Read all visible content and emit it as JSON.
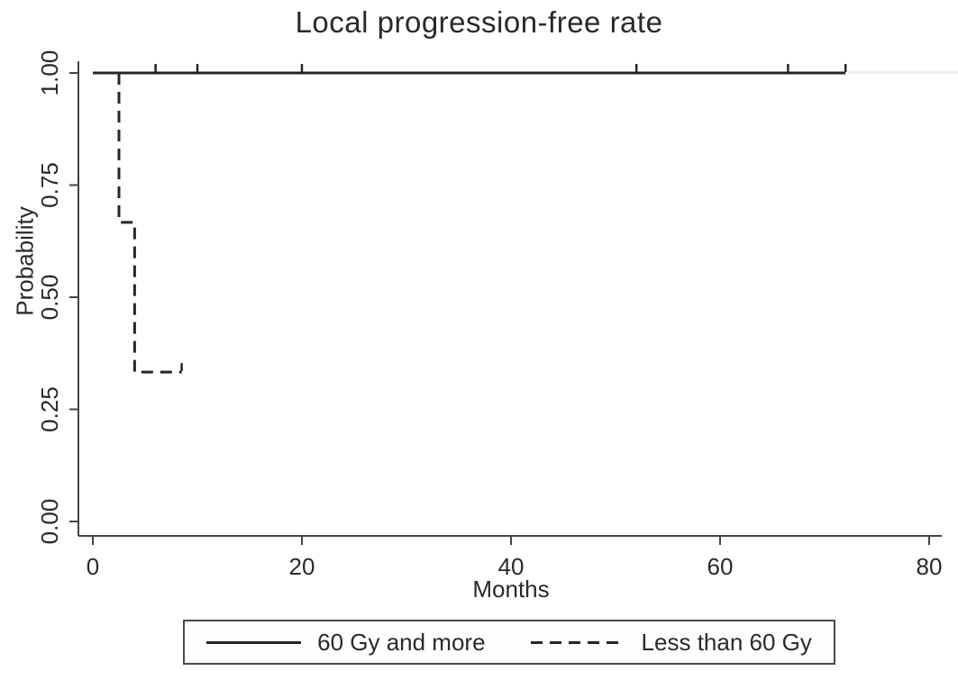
{
  "chart_data": {
    "type": "line",
    "subtype": "kaplan-meier-step",
    "title": "Local progression-free rate",
    "xlabel": "Months",
    "ylabel": "Probability",
    "xlim": [
      0,
      80
    ],
    "ylim": [
      0.0,
      1.0
    ],
    "x_ticks": [
      "0",
      "20",
      "40",
      "60",
      "80"
    ],
    "y_ticks": [
      "0.00",
      "0.25",
      "0.50",
      "0.75",
      "1.00"
    ],
    "grid": false,
    "legend_position": "bottom",
    "series": [
      {
        "name": "60 Gy and more",
        "line_style": "solid",
        "color": "#262626",
        "points": [
          [
            0,
            1.0
          ],
          [
            72,
            1.0
          ]
        ],
        "censor_marks": [
          [
            6,
            1.0
          ],
          [
            10,
            1.0
          ],
          [
            20,
            1.0
          ],
          [
            52,
            1.0
          ],
          [
            66.5,
            1.0
          ],
          [
            72,
            1.0
          ]
        ]
      },
      {
        "name": "Less than 60 Gy",
        "line_style": "dashed",
        "color": "#262626",
        "points": [
          [
            2.5,
            1.0
          ],
          [
            2.5,
            0.667
          ],
          [
            4,
            0.667
          ],
          [
            4,
            0.333
          ],
          [
            8.5,
            0.333
          ]
        ],
        "censor_marks": [
          [
            8.5,
            0.333
          ]
        ]
      }
    ]
  },
  "legend": {
    "items": [
      {
        "label": "60 Gy and more",
        "style": "solid"
      },
      {
        "label": "Less than 60 Gy",
        "style": "dashed"
      }
    ]
  },
  "colors": {
    "line": "#262626",
    "axis": "#444444",
    "text": "#2a2a2a",
    "background": "#ffffff"
  }
}
